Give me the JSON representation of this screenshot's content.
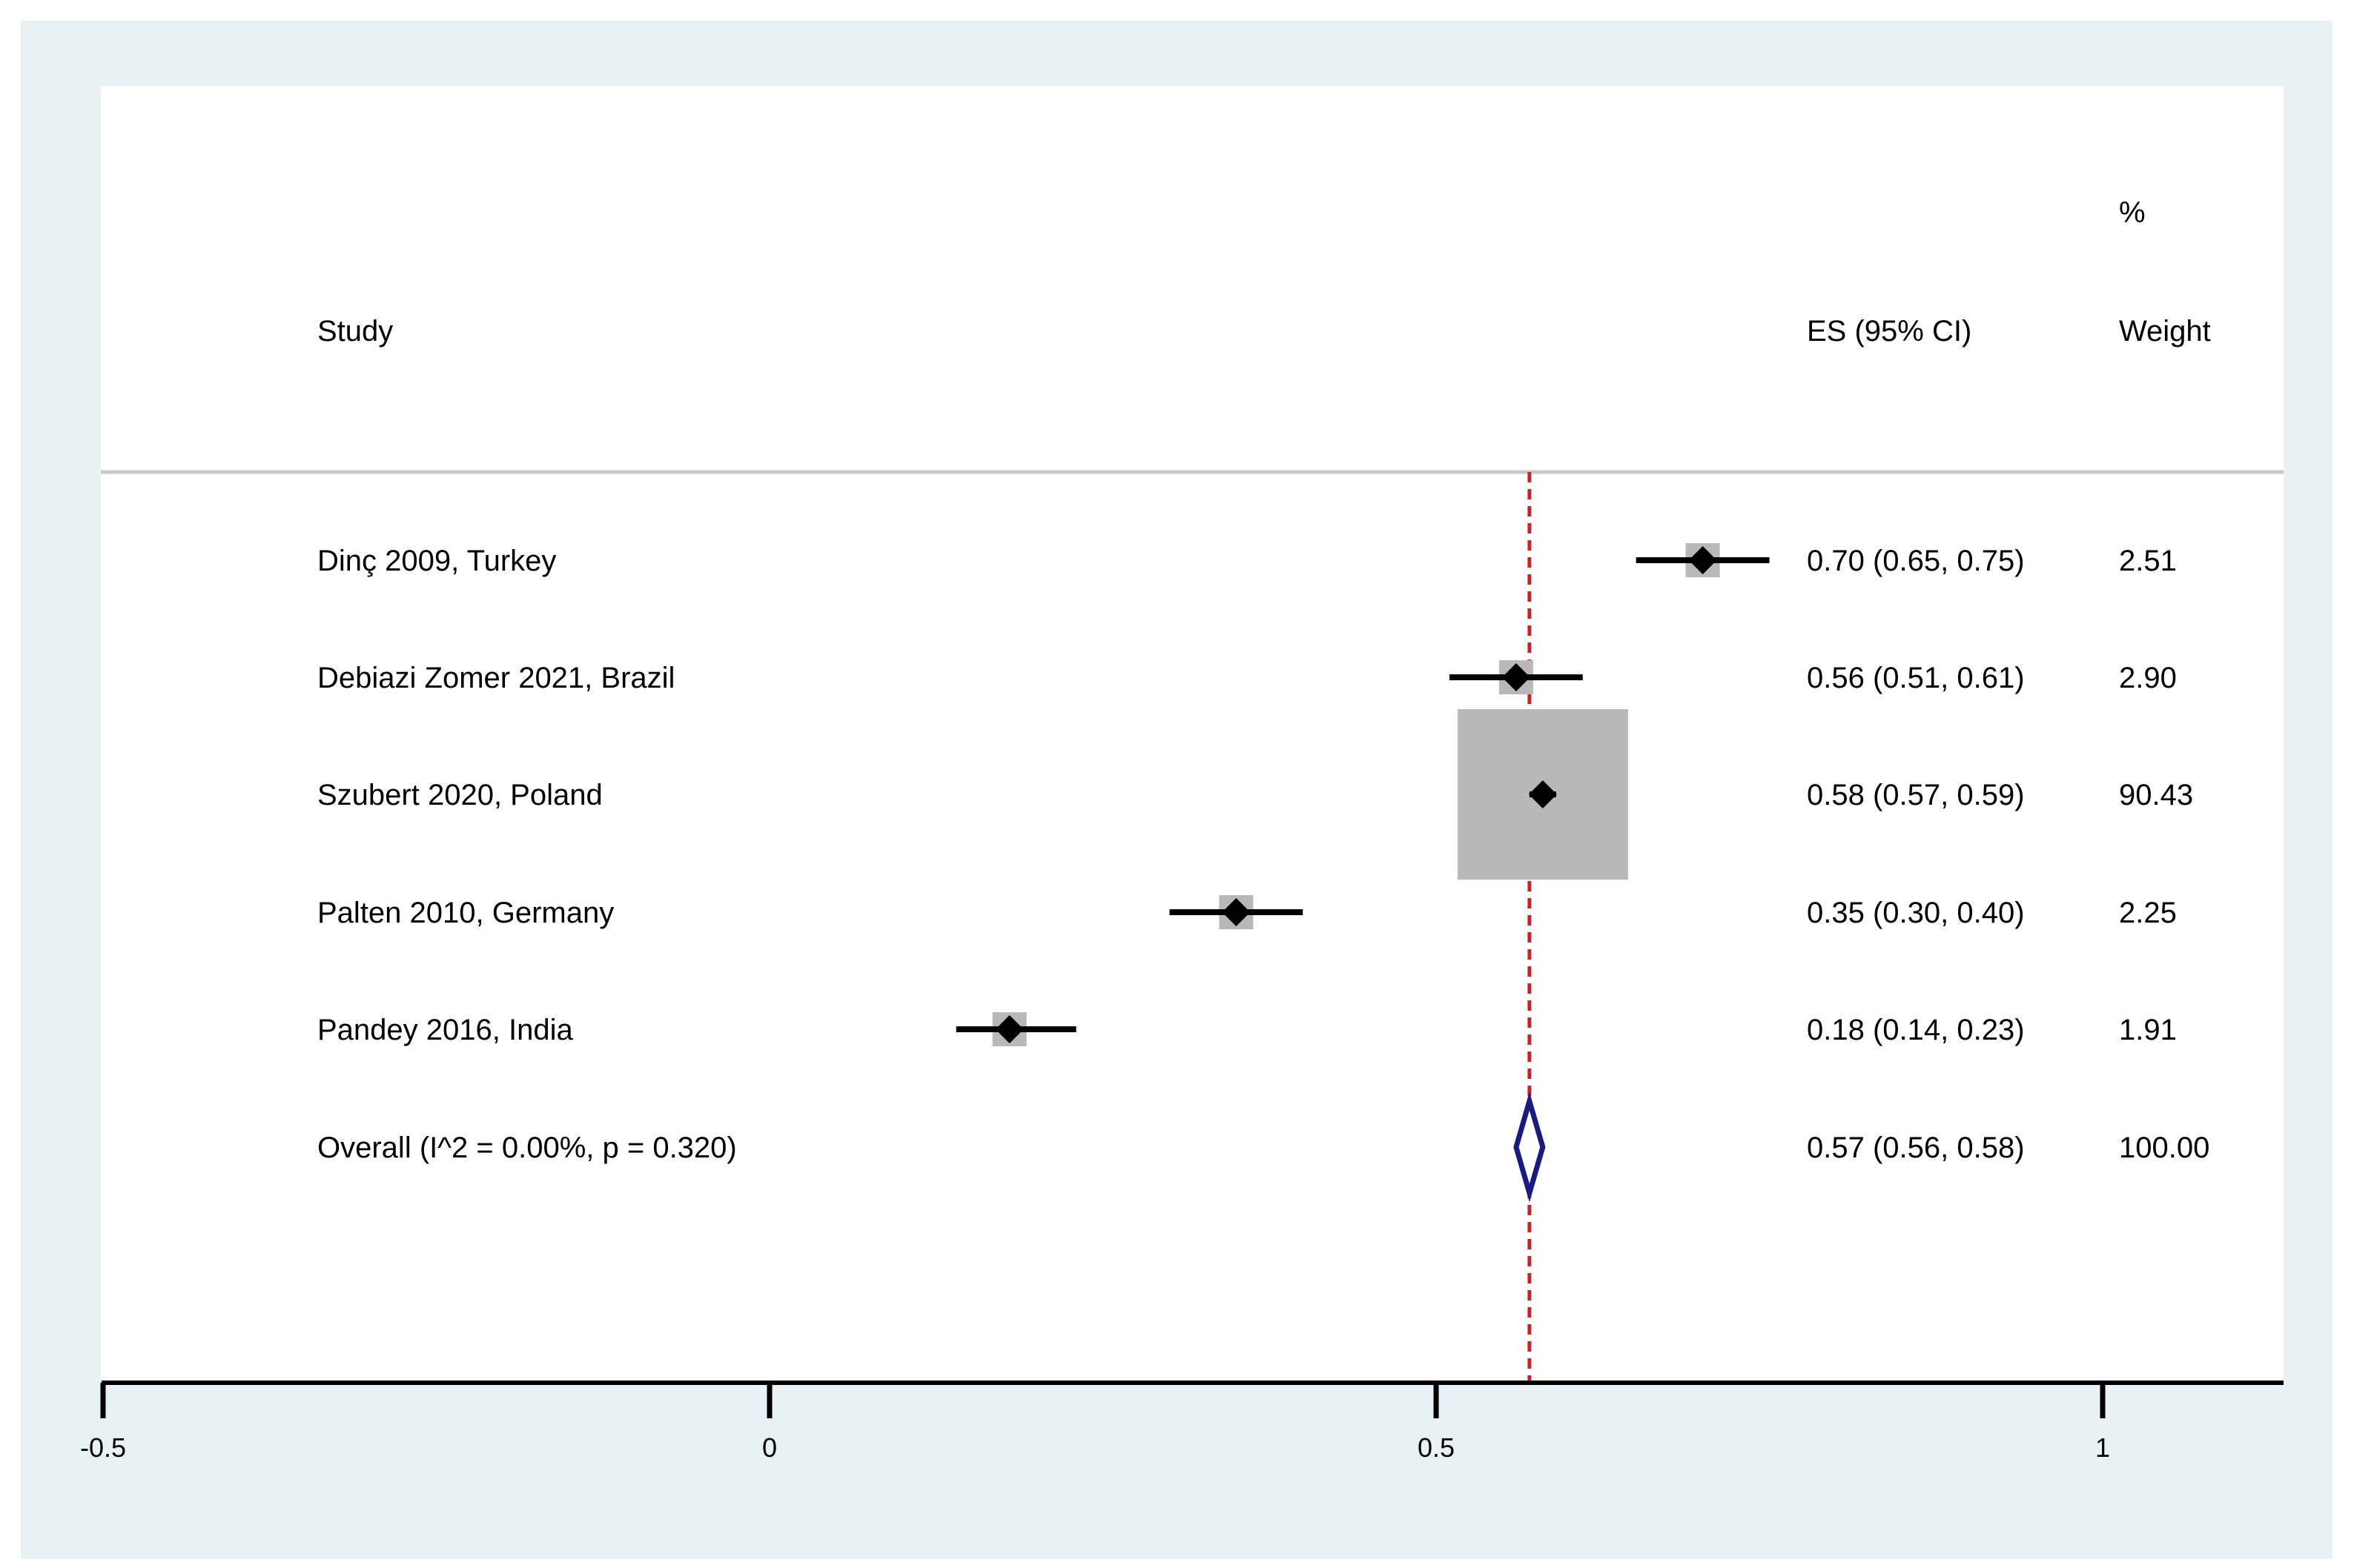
{
  "chart_data": {
    "type": "forest",
    "headers": {
      "study": "Study",
      "es": "ES (95% CI)",
      "weight_line1": "%",
      "weight_line2": "Weight"
    },
    "studies": [
      {
        "name": "Dinç 2009, Turkey",
        "es": 0.7,
        "lo": 0.65,
        "hi": 0.75,
        "weight": 2.51,
        "es_text": "0.70 (0.65, 0.75)",
        "weight_text": "2.51"
      },
      {
        "name": "Debiazi Zomer 2021, Brazil",
        "es": 0.56,
        "lo": 0.51,
        "hi": 0.61,
        "weight": 2.9,
        "es_text": "0.56 (0.51, 0.61)",
        "weight_text": "2.90"
      },
      {
        "name": "Szubert 2020, Poland",
        "es": 0.58,
        "lo": 0.57,
        "hi": 0.59,
        "weight": 90.43,
        "es_text": "0.58 (0.57, 0.59)",
        "weight_text": "90.43"
      },
      {
        "name": "Palten 2010, Germany",
        "es": 0.35,
        "lo": 0.3,
        "hi": 0.4,
        "weight": 2.25,
        "es_text": "0.35 (0.30, 0.40)",
        "weight_text": "2.25"
      },
      {
        "name": "Pandey 2016, India",
        "es": 0.18,
        "lo": 0.14,
        "hi": 0.23,
        "weight": 1.91,
        "es_text": "0.18 (0.14, 0.23)",
        "weight_text": "1.91"
      }
    ],
    "overall": {
      "name": "Overall  (I^2 = 0.00%, p = 0.320)",
      "es": 0.57,
      "lo": 0.56,
      "hi": 0.58,
      "es_text": "0.57 (0.56, 0.58)",
      "weight_text": "100.00"
    },
    "x_ticks": [
      -0.5,
      0,
      0.5,
      1
    ],
    "x_tick_labels": [
      "-0.5",
      "0",
      "0.5",
      "1"
    ],
    "xlim": [
      -0.5,
      1.13
    ],
    "reference_line": 0.57,
    "colors": {
      "background": "#e8f1f6",
      "panel": "#ffffff",
      "box": "#b8b8b8",
      "point": "#000000",
      "ci": "#000000",
      "ref_line": "#c0262c",
      "diamond": "#1a1a80"
    }
  }
}
